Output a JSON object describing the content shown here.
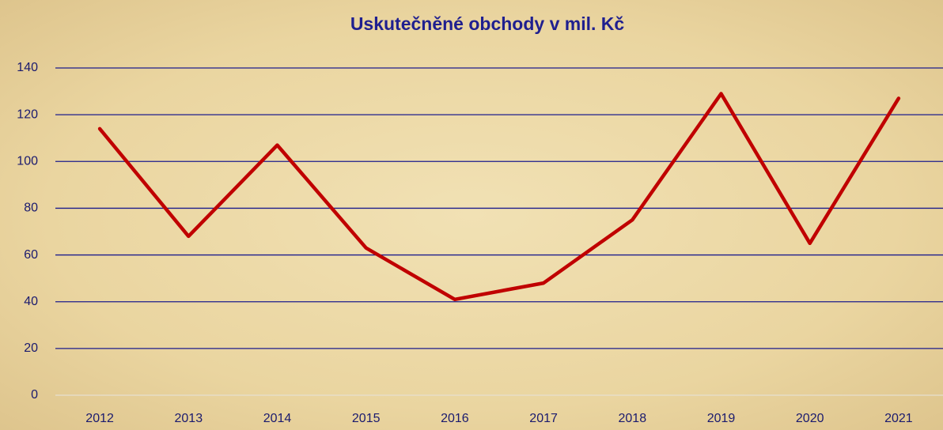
{
  "chart_data": {
    "type": "line",
    "title": "Uskutečněné obchody v mil. Kč",
    "categories": [
      "2012",
      "2013",
      "2014",
      "2015",
      "2016",
      "2017",
      "2018",
      "2019",
      "2020",
      "2021"
    ],
    "series": [
      {
        "color": "#c00000",
        "values": [
          114,
          68,
          107,
          63,
          41,
          48,
          75,
          129,
          65,
          127
        ]
      }
    ],
    "ylim": [
      0,
      140
    ],
    "yticks": [
      0,
      20,
      40,
      60,
      80,
      100,
      120,
      140
    ],
    "grid": true,
    "grid_color": "#1c1c8c"
  }
}
